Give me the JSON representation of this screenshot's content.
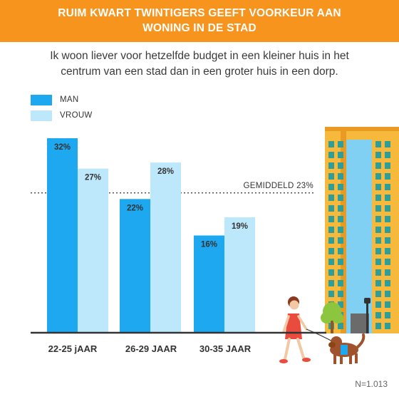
{
  "header": {
    "title_line1": "RUIM KWART TWINTIGERS GEEFT VOORKEUR AAN",
    "title_line2": "WONING IN DE STAD"
  },
  "subtitle": {
    "line1": "Ik woon liever voor hetzelfde budget in een kleiner huis in het",
    "line2": "centrum van een stad dan in een groter huis in een dorp."
  },
  "colors": {
    "banner": "#F7941D",
    "man": "#1DA8F0",
    "vrouw": "#BDE7FA",
    "axis": "#333333"
  },
  "chart_data": {
    "type": "bar",
    "categories": [
      "22-25 jAAR",
      "26-29 JAAR",
      "30-35 JAAR"
    ],
    "series": [
      {
        "name": "MAN",
        "values": [
          32,
          22,
          16
        ],
        "labels": [
          "32%",
          "22%",
          "16%"
        ]
      },
      {
        "name": "VROUW",
        "values": [
          27,
          28,
          19
        ],
        "labels": [
          "27%",
          "28%",
          "19%"
        ]
      }
    ],
    "reference_line": {
      "value": 23,
      "label": "GEMIDDELD 23%"
    },
    "ylim": [
      0,
      32
    ],
    "grid": false,
    "legend_position": "top-left"
  },
  "footnote": "N=1.013"
}
